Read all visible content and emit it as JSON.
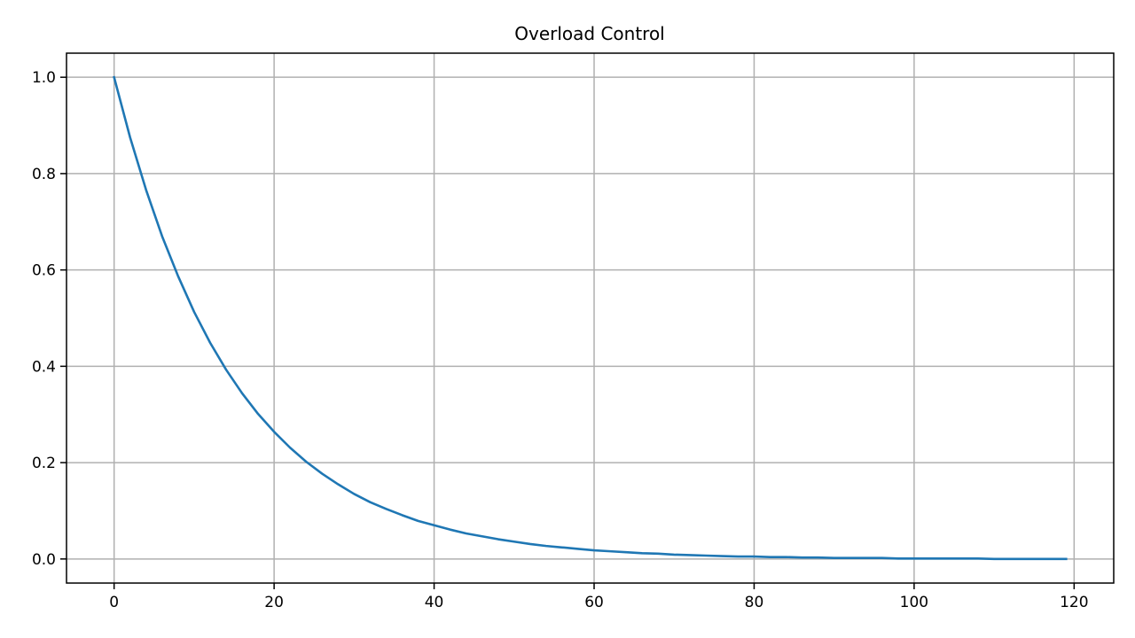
{
  "chart_data": {
    "type": "line",
    "title": "Overload Control",
    "xlabel": "",
    "ylabel": "",
    "xlim": [
      -5.95,
      124.95
    ],
    "ylim": [
      -0.05,
      1.05
    ],
    "xticks": [
      0,
      20,
      40,
      60,
      80,
      100,
      120
    ],
    "xtick_labels": [
      "0",
      "20",
      "40",
      "60",
      "80",
      "100",
      "120"
    ],
    "yticks": [
      0.0,
      0.2,
      0.4,
      0.6,
      0.8,
      1.0
    ],
    "ytick_labels": [
      "0.0",
      "0.2",
      "0.4",
      "0.6",
      "0.8",
      "1.0"
    ],
    "grid": true,
    "legend": "none",
    "colors": {
      "series": "#1f77b4",
      "grid": "#b0b0b0",
      "axes": "#000000"
    },
    "series": [
      {
        "x": [
          0,
          2,
          4,
          6,
          8,
          10,
          12,
          14,
          16,
          18,
          20,
          22,
          24,
          26,
          28,
          30,
          32,
          34,
          36,
          38,
          40,
          42,
          44,
          46,
          48,
          50,
          52,
          54,
          56,
          58,
          60,
          62,
          64,
          66,
          68,
          70,
          72,
          74,
          76,
          78,
          80,
          82,
          84,
          86,
          88,
          90,
          92,
          94,
          96,
          98,
          100,
          102,
          104,
          106,
          108,
          110,
          112,
          114,
          116,
          118,
          119
        ],
        "y": [
          1.0,
          0.875,
          0.766,
          0.67,
          0.587,
          0.513,
          0.449,
          0.393,
          0.344,
          0.301,
          0.264,
          0.231,
          0.202,
          0.177,
          0.155,
          0.135,
          0.118,
          0.104,
          0.091,
          0.079,
          0.07,
          0.061,
          0.053,
          0.047,
          0.041,
          0.036,
          0.031,
          0.027,
          0.024,
          0.021,
          0.018,
          0.016,
          0.014,
          0.012,
          0.011,
          0.009,
          0.008,
          0.007,
          0.006,
          0.005,
          0.005,
          0.004,
          0.004,
          0.003,
          0.003,
          0.002,
          0.002,
          0.002,
          0.002,
          0.001,
          0.001,
          0.001,
          0.001,
          0.001,
          0.001,
          0.0,
          0.0,
          0.0,
          0.0,
          0.0,
          0.0
        ]
      }
    ]
  }
}
